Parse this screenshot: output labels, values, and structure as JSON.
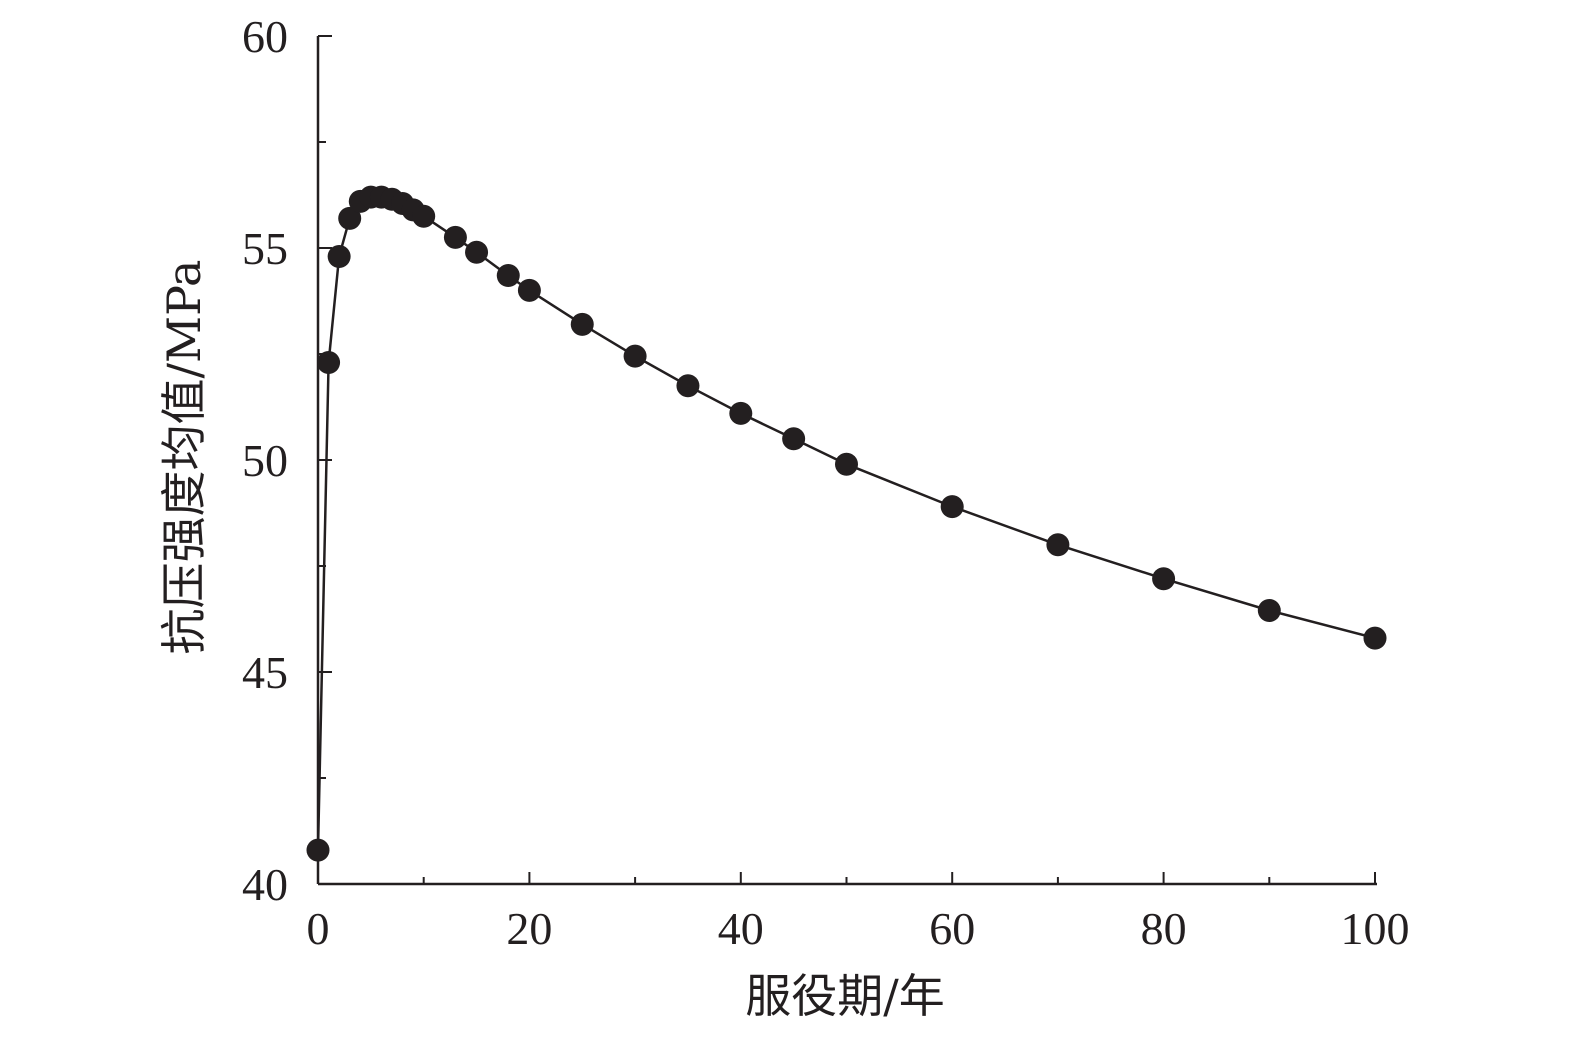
{
  "chart_data": {
    "type": "line",
    "title": "",
    "xlabel": "服役期/年",
    "ylabel": "抗压强度均值/MPa",
    "xlim": [
      0,
      100
    ],
    "ylim": [
      40,
      60
    ],
    "x_major_ticks": [
      0,
      20,
      40,
      60,
      80,
      100
    ],
    "x_minor_ticks": [
      10,
      30,
      50,
      70,
      90
    ],
    "y_major_ticks": [
      40,
      45,
      50,
      55,
      60
    ],
    "y_minor_ticks": [
      42.5,
      47.5,
      52.5,
      57.5
    ],
    "x_tick_labels": [
      "0",
      "20",
      "40",
      "60",
      "80",
      "100"
    ],
    "y_tick_labels": [
      "40",
      "45",
      "50",
      "55",
      "60"
    ],
    "grid": false,
    "legend": "none",
    "colors": {
      "line": "#231f20",
      "marker": "#231f20",
      "axis": "#231f20"
    },
    "series": [
      {
        "marker": "filled-circle",
        "x": [
          0,
          1,
          2,
          3,
          4,
          5,
          6,
          7,
          8,
          9,
          10,
          13,
          15,
          18,
          20,
          25,
          30,
          35,
          40,
          45,
          50,
          60,
          70,
          80,
          90,
          100
        ],
        "y": [
          40.8,
          52.3,
          54.8,
          55.7,
          56.1,
          56.2,
          56.2,
          56.15,
          56.05,
          55.9,
          55.75,
          55.25,
          54.9,
          54.35,
          54.0,
          53.2,
          52.45,
          51.75,
          51.1,
          50.5,
          49.9,
          48.9,
          48.0,
          47.2,
          46.45,
          45.8
        ]
      }
    ]
  }
}
